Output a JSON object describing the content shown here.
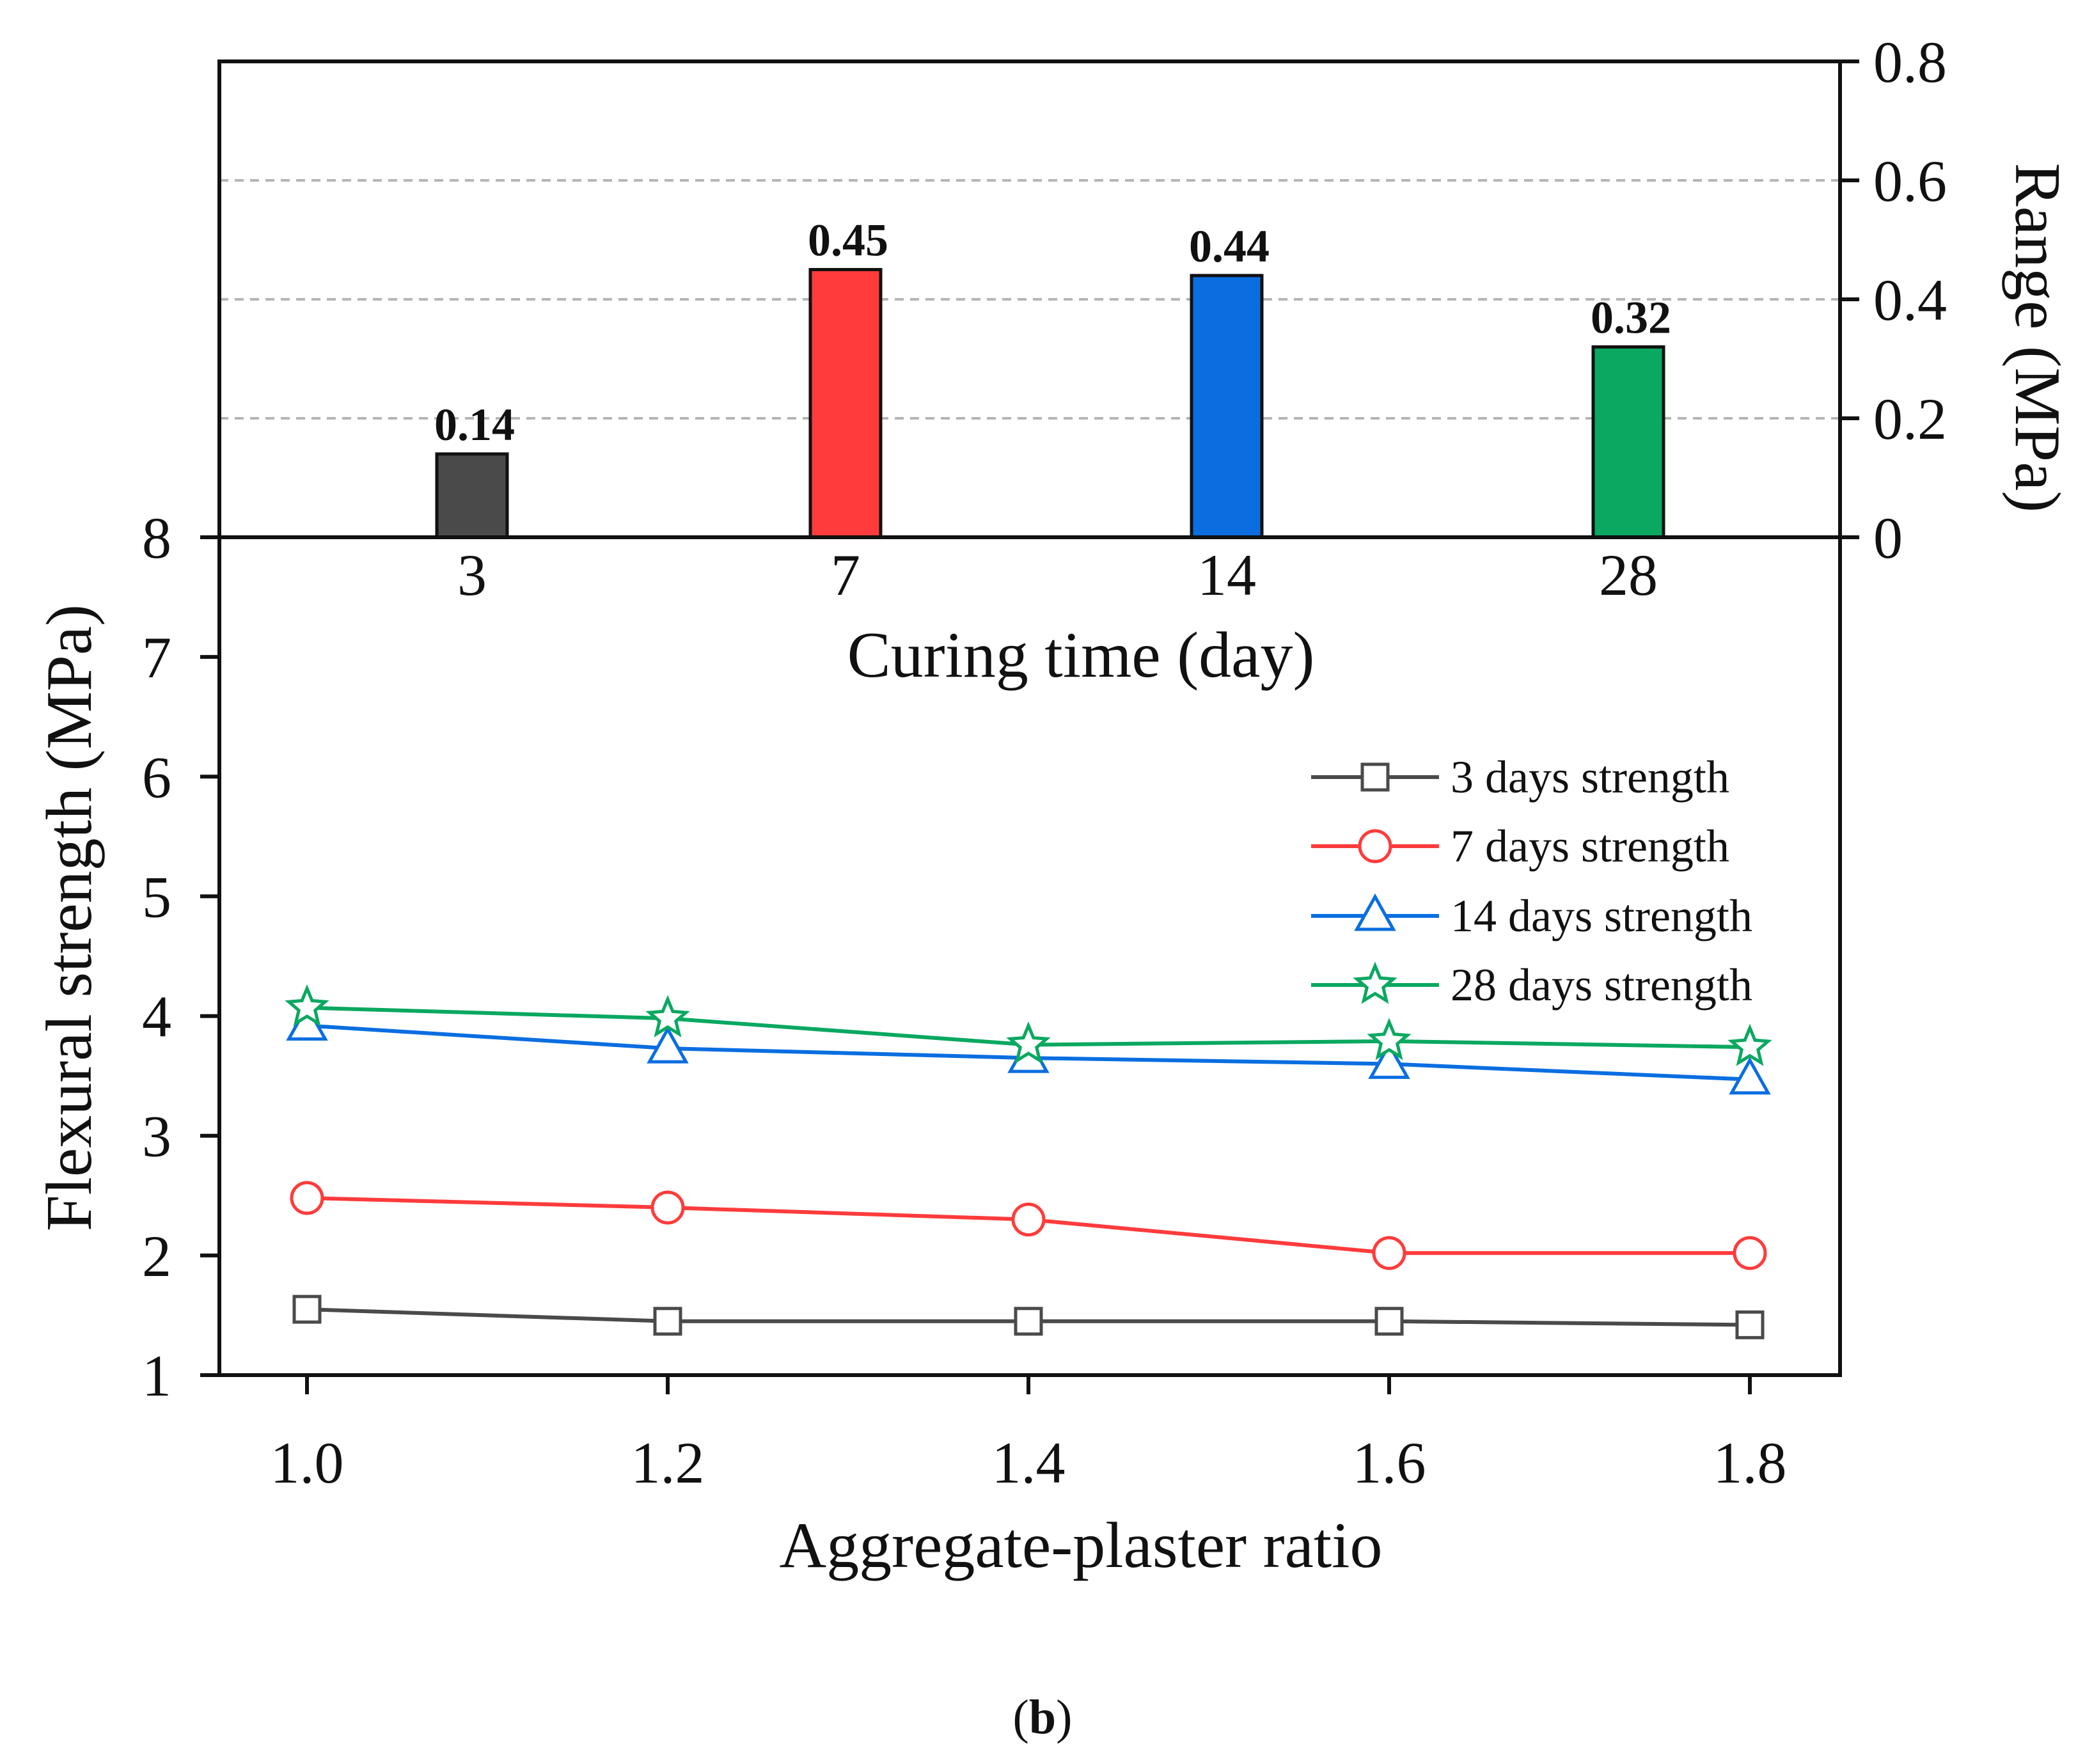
{
  "chart_data": [
    {
      "type": "bar",
      "title": "",
      "xlabel": "Curing time (day)",
      "ylabel": "Range (MPa)",
      "categories": [
        "3",
        "7",
        "14",
        "28"
      ],
      "values": [
        0.14,
        0.45,
        0.44,
        0.32
      ],
      "value_labels": [
        "0.14",
        "0.45",
        "0.44",
        "0.32"
      ],
      "colors": [
        "#4a4a4a",
        "#ff3b3b",
        "#0a6ee0",
        "#0aa860"
      ],
      "ylim": [
        0,
        0.8
      ],
      "yticks": [
        "0",
        "0.2",
        "0.4",
        "0.6",
        "0.8"
      ],
      "grid": "dashed horizontal",
      "y_axis_side": "right"
    },
    {
      "type": "line",
      "title": "",
      "xlabel": "Aggregate-plaster ratio",
      "ylabel": "Flexural strength (MPa)",
      "x": [
        1.0,
        1.2,
        1.4,
        1.6,
        1.8
      ],
      "xticks": [
        "1.0",
        "1.2",
        "1.4",
        "1.6",
        "1.8"
      ],
      "ylim": [
        1,
        8
      ],
      "yticks": [
        "1",
        "2",
        "3",
        "4",
        "5",
        "6",
        "7",
        "8"
      ],
      "legend_position": "right",
      "series": [
        {
          "name": "3 days strength",
          "values": [
            1.55,
            1.45,
            1.45,
            1.45,
            1.42
          ],
          "color": "#4a4a4a",
          "marker": "square"
        },
        {
          "name": "7 days strength",
          "values": [
            2.48,
            2.4,
            2.3,
            2.02,
            2.02
          ],
          "color": "#ff3b3b",
          "marker": "circle"
        },
        {
          "name": "14 days strength",
          "values": [
            3.92,
            3.73,
            3.65,
            3.6,
            3.47
          ],
          "color": "#0a6ee0",
          "marker": "triangle"
        },
        {
          "name": "28 days strength",
          "values": [
            4.07,
            3.98,
            3.76,
            3.79,
            3.74
          ],
          "color": "#0aa860",
          "marker": "star"
        }
      ]
    }
  ],
  "caption": {
    "open": "(",
    "letter": "b",
    "close": ")"
  }
}
